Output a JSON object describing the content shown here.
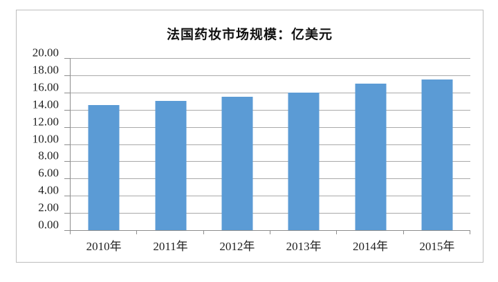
{
  "chart_data": {
    "type": "bar",
    "title": "法国药妆市场规模：亿美元",
    "categories": [
      "2010年",
      "2011年",
      "2012年",
      "2013年",
      "2014年",
      "2015年"
    ],
    "values": [
      14.5,
      15.0,
      15.5,
      16.0,
      17.0,
      17.5
    ],
    "series_name": "法国药妆市场规模",
    "xlabel": "",
    "ylabel": "",
    "ylim": [
      0,
      20
    ],
    "y_tick_step": 2,
    "y_tick_labels": [
      "0.00",
      "2.00",
      "4.00",
      "6.00",
      "8.00",
      "10.00",
      "12.00",
      "14.00",
      "16.00",
      "18.00",
      "20.00"
    ],
    "grid": "horizontal",
    "legend": "none",
    "colors": {
      "bar_fill": "#5b9bd5",
      "gridline": "#a9a9a9",
      "axis_line": "#8c8c8c",
      "frame_border": "#bdbdbd",
      "title_text": "#111111",
      "tick_text": "#1f1f1f",
      "background": "#ffffff"
    }
  }
}
